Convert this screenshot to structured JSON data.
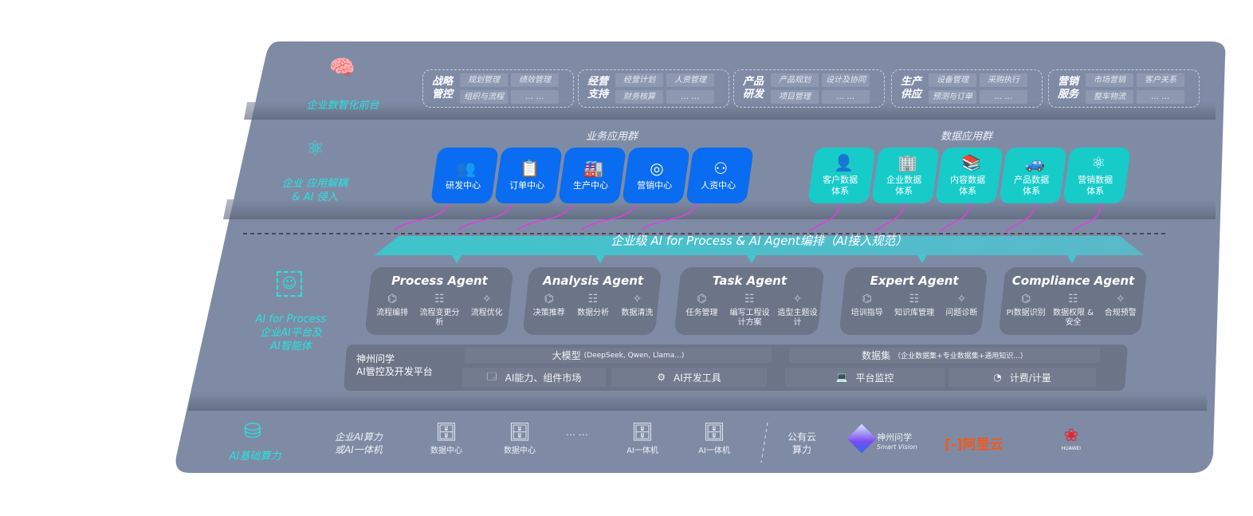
{
  "layers": {
    "front": "企业数智化前台",
    "decouple": [
      "企业 应用解耦",
      "& AI 侵入"
    ],
    "process": [
      "AI for Process",
      "企业AI平台及",
      "AI智能体"
    ],
    "compute": "AI基础算力"
  },
  "groups": [
    {
      "name": "战略管控",
      "items": [
        "规划管理",
        "绩效管理",
        "组织与流程",
        "… …"
      ]
    },
    {
      "name": "经营支持",
      "items": [
        "经营计划",
        "人资管理",
        "财务核算",
        "… …"
      ]
    },
    {
      "name": "产品研发",
      "items": [
        "产品规划",
        "设计及协同",
        "项目管理",
        "… …"
      ]
    },
    {
      "name": "生产供应",
      "items": [
        "设备管理",
        "采购执行",
        "预测与订单",
        "… …"
      ]
    },
    {
      "name": "营销服务",
      "items": [
        "市场营销",
        "客户关系",
        "整车物流",
        "… …"
      ]
    }
  ],
  "business": {
    "title": "业务应用群",
    "cards": [
      {
        "label": "研发中心",
        "icon": "team-icon"
      },
      {
        "label": "订单中心",
        "icon": "clipboard-icon"
      },
      {
        "label": "生产中心",
        "icon": "factory-icon"
      },
      {
        "label": "营销中心",
        "icon": "target-icon"
      },
      {
        "label": "人资中心",
        "icon": "people-icon"
      }
    ]
  },
  "data_apps": {
    "title": "数据应用群",
    "cards": [
      {
        "label": "客户数据体系",
        "icon": "user-icon"
      },
      {
        "label": "企业数据体系",
        "icon": "building-icon"
      },
      {
        "label": "内容数据体系",
        "icon": "books-icon"
      },
      {
        "label": "产品数据体系",
        "icon": "car-icon"
      },
      {
        "label": "营销数据体系",
        "icon": "atom-icon"
      }
    ]
  },
  "banner": "企业级 AI for Process & AI Agent编排（AI接入规范）",
  "agents": [
    {
      "name": "Process Agent",
      "features": [
        "流程编排",
        "流程变更分析",
        "流程优化"
      ]
    },
    {
      "name": "Analysis Agent",
      "features": [
        "决策推荐",
        "数据分析",
        "数据清洗"
      ]
    },
    {
      "name": "Task Agent",
      "features": [
        "任务管理",
        "编写工程设计方案",
        "造型主题设计"
      ]
    },
    {
      "name": "Expert Agent",
      "features": [
        "培训指导",
        "知识库管理",
        "问题诊断"
      ]
    },
    {
      "name": "Compliance Agent",
      "features": [
        "PI数据识别",
        "数据权限 & 安全",
        "合规预警"
      ]
    }
  ],
  "platform": {
    "name": [
      "神州问学",
      "AI管控及开发平台"
    ],
    "model": "大模型",
    "model_note": "(DeepSeek, Qwen, Llama...)",
    "dataset": "数据集",
    "dataset_note": "（企业数据集+专业数据集+通用知识...）",
    "market": "AI能力、组件市场",
    "devtools": "AI开发工具",
    "monitor": "平台监控",
    "billing": "计费/计量"
  },
  "compute": {
    "private": [
      "企业AI算力",
      "或AI一体机"
    ],
    "nodes": [
      "数据中心",
      "数据中心",
      "AI一体机",
      "AI一体机"
    ],
    "ellipsis": "… …",
    "public": [
      "公有云",
      "算力"
    ],
    "vendors": {
      "shenzhou": "神州问学",
      "shenzhou_sub": "Smart Vision",
      "aliyun": "阿里云",
      "huawei": "HUAWEI"
    }
  },
  "colors": {
    "panel": "#7f8ba5",
    "blue": "#0a6cf0",
    "teal": "#17cbc9",
    "accent": "#27e3e0",
    "arrow": "#e03de0"
  }
}
